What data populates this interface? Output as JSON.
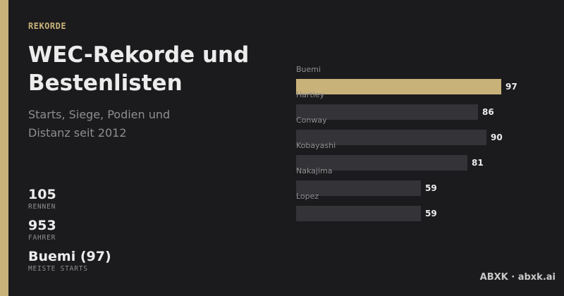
{
  "eyebrow": "REKORDE",
  "title": "WEC-Rekorde und Bestenlisten",
  "subtitle": "Starts, Siege, Podien und Distanz seit 2012",
  "stats": [
    {
      "value": "105",
      "label": "RENNEN"
    },
    {
      "value": "953",
      "label": "FAHRER"
    },
    {
      "value": "Buemi (97)",
      "label": "MEISTE STARTS"
    }
  ],
  "brand": "ABXK · abxk.ai",
  "colors": {
    "accent": "#c8b27a",
    "bar": "#333338",
    "background": "#1b1b1d"
  },
  "chart_data": {
    "type": "bar",
    "orientation": "horizontal",
    "categories": [
      "Buemi",
      "Hartley",
      "Conway",
      "Kobayashi",
      "Nakajima",
      "Lopez"
    ],
    "values": [
      97,
      86,
      90,
      81,
      59,
      59
    ],
    "highlight_index": 0,
    "xlim": [
      0,
      100
    ],
    "grid": false,
    "legend": "none"
  }
}
